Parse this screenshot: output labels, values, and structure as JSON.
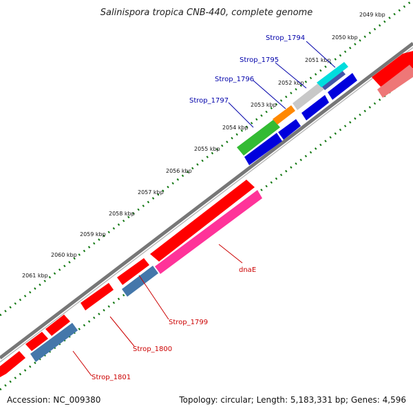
{
  "title": "Salinispora tropica CNB-440, complete genome",
  "footer": {
    "accession": "Accession: NC_009380",
    "summary": "Topology: circular; Length: 5,183,331 bp; Genes: 4,596"
  },
  "ticks": [
    "2049 kbp",
    "2050 kbp",
    "2051 kbp",
    "2052 kbp",
    "2053 kbp",
    "2054 kbp",
    "2055 kbp",
    "2056 kbp",
    "2057 kbp",
    "2058 kbp",
    "2059 kbp",
    "2060 kbp",
    "2061 kbp"
  ],
  "gene_labels": {
    "strop_1794": "Strop_1794",
    "strop_1795": "Strop_1795",
    "strop_1796": "Strop_1796",
    "strop_1797": "Strop_1797",
    "dnaE": "dnaE",
    "strop_1799": "Strop_1799",
    "strop_1800": "Strop_1800",
    "strop_1801": "Strop_1801"
  },
  "colors": {
    "red": "#ff0000",
    "pink": "#ff3399",
    "steelblue": "#4477aa",
    "blue": "#0000dd",
    "green": "#33bb33",
    "orange": "#ff8800",
    "grey": "#c8c8c8",
    "cyan": "#00dddd",
    "lightred": "#ee7777",
    "backbone": "#777777",
    "tick": "#117711"
  }
}
